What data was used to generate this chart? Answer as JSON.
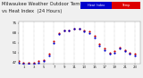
{
  "title_left": "Milwaukee Weather Outdoor Temperature",
  "title_right": "vs Heat Index",
  "title_sub": "(24 Hours)",
  "title_fontsize": 3.8,
  "bg_color": "#f0f0f0",
  "plot_bg": "#ffffff",
  "grid_color": "#aaaaaa",
  "legend_temp_color": "#dd0000",
  "legend_heat_color": "#0000cc",
  "legend_label_temp": "Temp",
  "legend_label_heat": "Heat Index",
  "ylim": [
    46,
    76
  ],
  "xlim": [
    0,
    24
  ],
  "ylabel_fontsize": 3.0,
  "xlabel_fontsize": 2.8,
  "yticks": [
    47,
    54,
    61,
    68,
    75
  ],
  "xticks": [
    1,
    3,
    5,
    7,
    9,
    11,
    13,
    15,
    17,
    19,
    21,
    23
  ],
  "temp_x": [
    0,
    1,
    2,
    3,
    4,
    5,
    6,
    7,
    8,
    9,
    10,
    11,
    12,
    13,
    14,
    15,
    16,
    17,
    18,
    19,
    20,
    21,
    22,
    23
  ],
  "temp_y": [
    48,
    47,
    47,
    47,
    48,
    49,
    53,
    62,
    68,
    70,
    70,
    71,
    71,
    70,
    69,
    66,
    60,
    57,
    54,
    55,
    58,
    56,
    54,
    53
  ],
  "heat_x": [
    0,
    1,
    2,
    3,
    4,
    5,
    6,
    7,
    8,
    9,
    10,
    11,
    12,
    13,
    14,
    15,
    16,
    17,
    18,
    19,
    20,
    21,
    22,
    23
  ],
  "heat_y": [
    47,
    46,
    46,
    46,
    47,
    48,
    52,
    61,
    67,
    70,
    70,
    71,
    71,
    69,
    68,
    65,
    59,
    56,
    53,
    54,
    57,
    55,
    53,
    52
  ],
  "dot_size": 2.5,
  "temp_color": "#cc0000",
  "heat_color": "#0000cc"
}
